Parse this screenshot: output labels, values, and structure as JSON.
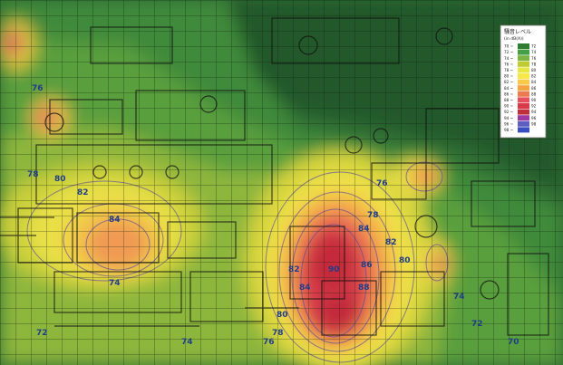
{
  "legend": {
    "title": "騒音レベル",
    "unit": "(in dB(A))",
    "rows": [
      {
        "range": "70 ~",
        "upper": "72",
        "color": "#2f7d32"
      },
      {
        "range": "72 ~",
        "upper": "74",
        "color": "#43a047"
      },
      {
        "range": "74 ~",
        "upper": "76",
        "color": "#7cb342"
      },
      {
        "range": "76 ~",
        "upper": "78",
        "color": "#c0ca33"
      },
      {
        "range": "78 ~",
        "upper": "80",
        "color": "#e6e645"
      },
      {
        "range": "80 ~",
        "upper": "82",
        "color": "#f7e84a"
      },
      {
        "range": "82 ~",
        "upper": "84",
        "color": "#f8c94a"
      },
      {
        "range": "84 ~",
        "upper": "86",
        "color": "#f4a343"
      },
      {
        "range": "86 ~",
        "upper": "88",
        "color": "#ee7a52"
      },
      {
        "range": "88 ~",
        "upper": "90",
        "color": "#e6505c"
      },
      {
        "range": "90 ~",
        "upper": "92",
        "color": "#d93a48"
      },
      {
        "range": "92 ~",
        "upper": "94",
        "color": "#c02f3c"
      },
      {
        "range": "94 ~",
        "upper": "96",
        "color": "#9c3aa0"
      },
      {
        "range": "96 ~",
        "upper": "98",
        "color": "#5e5ec0"
      },
      {
        "range": "98 ~",
        "upper": "",
        "color": "#3a4fbf"
      }
    ]
  },
  "contour_labels": [
    "84",
    "82",
    "80",
    "78",
    "76",
    "74",
    "72",
    "84",
    "82",
    "80",
    "78",
    "76",
    "74",
    "72",
    "70",
    "90",
    "88",
    "86",
    "84",
    "82",
    "80",
    "78",
    "76",
    "74"
  ]
}
